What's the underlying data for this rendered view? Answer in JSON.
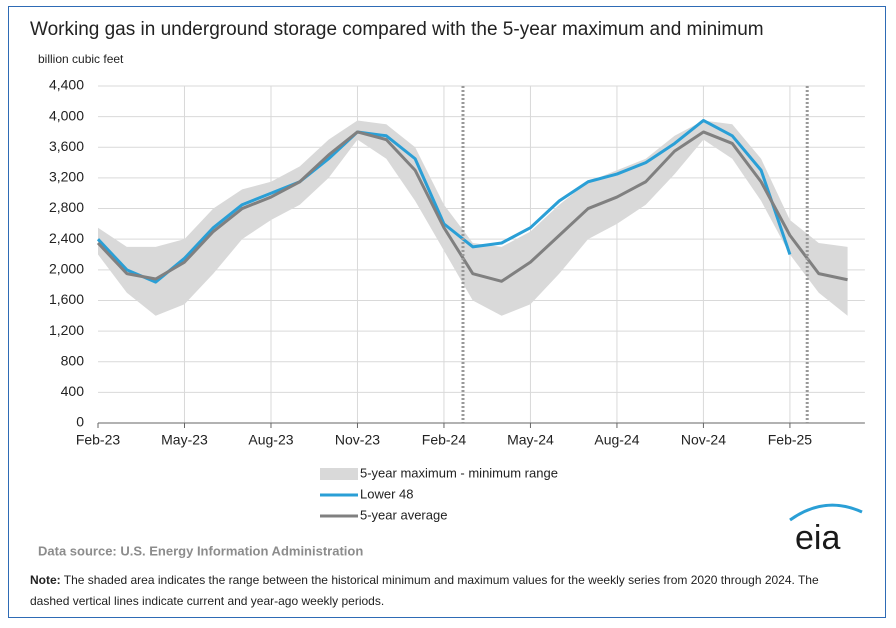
{
  "chart_data": {
    "type": "line",
    "title": "Working gas in underground  storage compared with the 5-year maximum  and minimum",
    "y_label": "billion cubic feet",
    "source": "Data source:  U.S. Energy Information Administration",
    "logo": "eia",
    "note_label": "Note:",
    "note": "The shaded area indicates the range between the historical minimum and maximum values for the weekly series from 2020 through 2024. The dashed vertical lines indicate current and year-ago weekly periods.",
    "categories": [
      "Feb-23",
      null,
      null,
      "May-23",
      null,
      null,
      "Aug-23",
      null,
      null,
      "Nov-23",
      null,
      null,
      "Feb-24",
      null,
      null,
      "May-24",
      null,
      null,
      "Aug-24",
      null,
      null,
      "Nov-24",
      null,
      null,
      "Feb-25",
      null,
      null
    ],
    "ylim": [
      0,
      4400
    ],
    "yticks": [
      0,
      400,
      800,
      {
        "value": 1200,
        "label": "1,200"
      },
      {
        "value": 1600,
        "label": "1,600"
      },
      {
        "value": 2000,
        "label": "2,000"
      },
      {
        "value": 2400,
        "label": "2,400"
      },
      {
        "value": 2800,
        "label": "2,800"
      },
      {
        "value": 3200,
        "label": "3,200"
      },
      {
        "value": 3600,
        "label": "3,600"
      },
      {
        "value": 4000,
        "label": "4,000"
      },
      {
        "value": 4400,
        "label": "4,400"
      }
    ],
    "grid": true,
    "series": [
      {
        "name": "5-year maximum - minimum range",
        "type": "range",
        "color": "#d9d9d9",
        "high": [
          2550,
          2300,
          2300,
          2400,
          2800,
          3050,
          3150,
          3350,
          3700,
          3950,
          3900,
          3600,
          2850,
          2350,
          2300,
          2500,
          2850,
          3150,
          3300,
          3450,
          3750,
          3950,
          3900,
          3450,
          2650,
          2350,
          2300
        ],
        "low": [
          2200,
          1700,
          1400,
          1550,
          1950,
          2400,
          2650,
          2850,
          3200,
          3700,
          3450,
          2900,
          2250,
          1600,
          1400,
          1550,
          1950,
          2400,
          2600,
          2850,
          3250,
          3700,
          3450,
          2900,
          2200,
          1700,
          1400
        ]
      },
      {
        "name": "Lower 48",
        "type": "line",
        "color": "#2a9fd6",
        "values": [
          2400,
          2000,
          1840,
          2150,
          2550,
          2850,
          3000,
          3150,
          3450,
          3800,
          3750,
          3450,
          2600,
          2300,
          2350,
          2550,
          2900,
          3150,
          3250,
          3400,
          3650,
          3950,
          3750,
          3300,
          2200,
          null,
          null
        ]
      },
      {
        "name": "5-year average",
        "type": "line",
        "color": "#808080",
        "values": [
          2350,
          1950,
          1880,
          2100,
          2500,
          2800,
          2950,
          3150,
          3500,
          3800,
          3700,
          3300,
          2550,
          1950,
          1850,
          2100,
          2450,
          2800,
          2950,
          3150,
          3550,
          3800,
          3650,
          3150,
          2450,
          1950,
          1870
        ]
      }
    ]
  }
}
